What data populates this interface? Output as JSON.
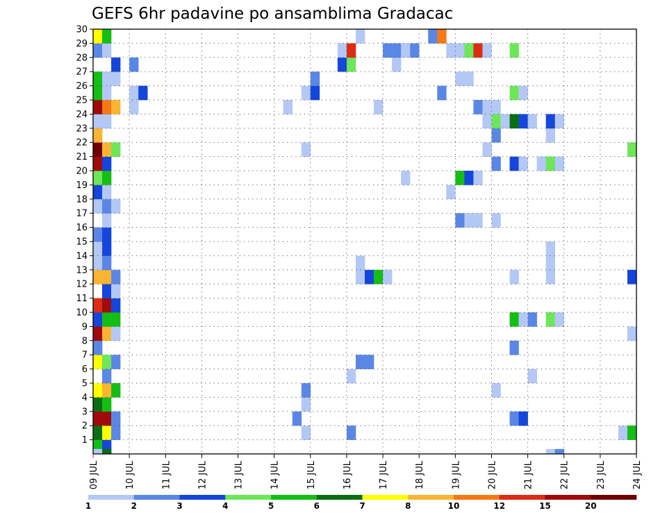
{
  "chart_data": {
    "type": "heatmap",
    "title": "GEFS 6hr padavine po ansamblima Gradacac",
    "members": [
      "1",
      "2",
      "3",
      "4",
      "5",
      "6",
      "7",
      "8",
      "9",
      "10",
      "11",
      "12",
      "13",
      "14",
      "15",
      "16",
      "17",
      "18",
      "19",
      "20",
      "21",
      "22",
      "23",
      "24",
      "25",
      "26",
      "27",
      "28",
      "29",
      "30"
    ],
    "x_ticks": [
      "09 JUL",
      "10 JUL",
      "11 JUL",
      "12 JUL",
      "13 JUL",
      "14 JUL",
      "15 JUL",
      "16 JUL",
      "17 JUL",
      "18 JUL",
      "19 JUL",
      "20 JUL",
      "21 JUL",
      "22 JUL",
      "23 JUL",
      "24 JUL"
    ],
    "xlim_days": [
      0,
      15
    ],
    "ylim_members": [
      0,
      30
    ],
    "grid": true,
    "colorbar": {
      "labels": [
        "1",
        "2",
        "3",
        "4",
        "5",
        "6",
        "7",
        "8",
        "10",
        "12",
        "15",
        "20"
      ],
      "colors": [
        "#b4c8f5",
        "#5a87e6",
        "#1446dc",
        "#6ee65a",
        "#14be14",
        "#0a6e14",
        "#ffff00",
        "#fab432",
        "#f57814",
        "#dc2d14",
        "#a00a0a",
        "#6e0000"
      ]
    },
    "cells": [
      {
        "m": 1,
        "s": [
          [
            1,
            5
          ],
          [
            2,
            3
          ]
        ]
      },
      {
        "m": 2,
        "s": [
          [
            1,
            6
          ],
          [
            2,
            7
          ],
          [
            3,
            2
          ],
          [
            24,
            1
          ],
          [
            29,
            2
          ],
          [
            59,
            1
          ],
          [
            60,
            5
          ]
        ]
      },
      {
        "m": 3,
        "s": [
          [
            1,
            11
          ],
          [
            2,
            11
          ],
          [
            3,
            2
          ],
          [
            23,
            2
          ],
          [
            47,
            2
          ],
          [
            48,
            3
          ]
        ]
      },
      {
        "m": 4,
        "s": [
          [
            1,
            6
          ],
          [
            2,
            5
          ],
          [
            24,
            1
          ]
        ]
      },
      {
        "m": 5,
        "s": [
          [
            1,
            7
          ],
          [
            2,
            8
          ],
          [
            3,
            5
          ],
          [
            24,
            2
          ],
          [
            45,
            1
          ]
        ]
      },
      {
        "m": 6,
        "s": [
          [
            2,
            2
          ],
          [
            29,
            1
          ],
          [
            49,
            1
          ]
        ]
      },
      {
        "m": 7,
        "s": [
          [
            1,
            7
          ],
          [
            2,
            4
          ],
          [
            3,
            2
          ],
          [
            30,
            2
          ],
          [
            31,
            2
          ]
        ]
      },
      {
        "m": 8,
        "s": [
          [
            1,
            2
          ],
          [
            47,
            2
          ]
        ]
      },
      {
        "m": 9,
        "s": [
          [
            1,
            11
          ],
          [
            2,
            8
          ],
          [
            3,
            1
          ],
          [
            60,
            1
          ]
        ]
      },
      {
        "m": 10,
        "s": [
          [
            1,
            3
          ],
          [
            2,
            5
          ],
          [
            3,
            5
          ],
          [
            49,
            2
          ],
          [
            47,
            5
          ],
          [
            48,
            1
          ],
          [
            51,
            4
          ],
          [
            52,
            1
          ]
        ]
      },
      {
        "m": 11,
        "s": [
          [
            1,
            10
          ],
          [
            2,
            11
          ],
          [
            3,
            3
          ]
        ]
      },
      {
        "m": 12,
        "s": [
          [
            2,
            3
          ],
          [
            3,
            1
          ]
        ]
      },
      {
        "m": 13,
        "s": [
          [
            1,
            8
          ],
          [
            2,
            8
          ],
          [
            3,
            2
          ],
          [
            30,
            1
          ],
          [
            31,
            3
          ],
          [
            32,
            5
          ],
          [
            33,
            1
          ],
          [
            47,
            1
          ],
          [
            51,
            1
          ],
          [
            60,
            3
          ]
        ]
      },
      {
        "m": 14,
        "s": [
          [
            1,
            1
          ],
          [
            2,
            2
          ],
          [
            30,
            1
          ],
          [
            51,
            1
          ]
        ]
      },
      {
        "m": 15,
        "s": [
          [
            1,
            1
          ],
          [
            2,
            3
          ],
          [
            51,
            1
          ]
        ]
      },
      {
        "m": 16,
        "s": [
          [
            1,
            2
          ],
          [
            2,
            3
          ]
        ]
      },
      {
        "m": 17,
        "s": [
          [
            2,
            1
          ],
          [
            41,
            2
          ],
          [
            42,
            1
          ],
          [
            43,
            1
          ],
          [
            45,
            1
          ]
        ]
      },
      {
        "m": 18,
        "s": [
          [
            1,
            1
          ],
          [
            2,
            2
          ],
          [
            3,
            1
          ]
        ]
      },
      {
        "m": 19,
        "s": [
          [
            1,
            3
          ],
          [
            2,
            1
          ],
          [
            40,
            1
          ]
        ]
      },
      {
        "m": 20,
        "s": [
          [
            1,
            4
          ],
          [
            2,
            5
          ],
          [
            35,
            1
          ],
          [
            41,
            5
          ],
          [
            42,
            3
          ],
          [
            43,
            1
          ]
        ]
      },
      {
        "m": 21,
        "s": [
          [
            1,
            11
          ],
          [
            2,
            3
          ],
          [
            45,
            2
          ],
          [
            47,
            3
          ],
          [
            48,
            1
          ],
          [
            50,
            1
          ],
          [
            51,
            4
          ],
          [
            52,
            1
          ]
        ]
      },
      {
        "m": 22,
        "s": [
          [
            1,
            12
          ],
          [
            2,
            8
          ],
          [
            3,
            4
          ],
          [
            24,
            1
          ],
          [
            44,
            1
          ],
          [
            60,
            4
          ]
        ]
      },
      {
        "m": 23,
        "s": [
          [
            1,
            8
          ],
          [
            45,
            2
          ],
          [
            51,
            1
          ]
        ]
      },
      {
        "m": 24,
        "s": [
          [
            1,
            1
          ],
          [
            2,
            1
          ],
          [
            44,
            1
          ],
          [
            45,
            4
          ],
          [
            46,
            1
          ],
          [
            47,
            6
          ],
          [
            48,
            3
          ],
          [
            49,
            1
          ],
          [
            51,
            3
          ],
          [
            52,
            1
          ]
        ]
      },
      {
        "m": 25,
        "s": [
          [
            1,
            11
          ],
          [
            2,
            9
          ],
          [
            3,
            8
          ],
          [
            5,
            1
          ],
          [
            22,
            1
          ],
          [
            32,
            1
          ],
          [
            43,
            2
          ],
          [
            45,
            1
          ],
          [
            44,
            1
          ]
        ]
      },
      {
        "m": 26,
        "s": [
          [
            1,
            5
          ],
          [
            2,
            1
          ],
          [
            5,
            1
          ],
          [
            6,
            3
          ],
          [
            24,
            1
          ],
          [
            25,
            3
          ],
          [
            39,
            2
          ],
          [
            47,
            4
          ],
          [
            48,
            1
          ]
        ]
      },
      {
        "m": 27,
        "s": [
          [
            1,
            5
          ],
          [
            2,
            1
          ],
          [
            3,
            1
          ],
          [
            25,
            2
          ],
          [
            42,
            1
          ],
          [
            41,
            1
          ]
        ]
      },
      {
        "m": 28,
        "s": [
          [
            3,
            3
          ],
          [
            5,
            2
          ],
          [
            28,
            3
          ],
          [
            29,
            4
          ],
          [
            34,
            1
          ]
        ]
      },
      {
        "m": 29,
        "s": [
          [
            1,
            2
          ],
          [
            2,
            1
          ],
          [
            28,
            1
          ],
          [
            29,
            10
          ],
          [
            33,
            2
          ],
          [
            34,
            2
          ],
          [
            35,
            1
          ],
          [
            36,
            2
          ],
          [
            40,
            1
          ],
          [
            41,
            1
          ],
          [
            42,
            4
          ],
          [
            43,
            10
          ],
          [
            44,
            1
          ],
          [
            47,
            4
          ]
        ]
      },
      {
        "m": 30,
        "s": [
          [
            1,
            7
          ],
          [
            2,
            5
          ],
          [
            30,
            1
          ],
          [
            38,
            2
          ],
          [
            39,
            9
          ]
        ]
      },
      {
        "m": 0,
        "s": [
          [
            1,
            1
          ],
          [
            2,
            6
          ],
          [
            51,
            1
          ],
          [
            52,
            2
          ]
        ]
      }
    ]
  }
}
